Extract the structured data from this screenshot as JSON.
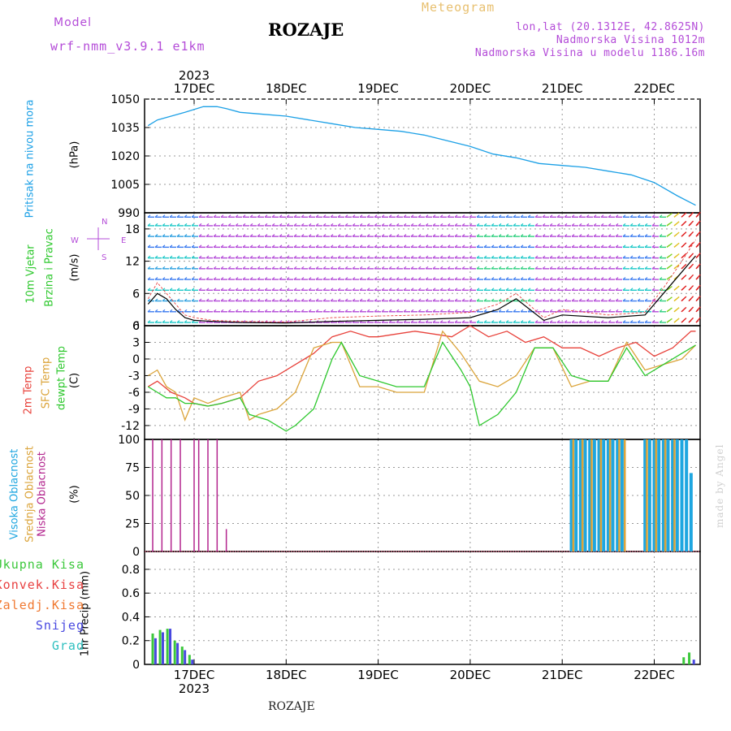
{
  "header": {
    "model_label": "Model",
    "model_name": "wrf-nmm_v3.9.1 e1km",
    "station": "ROZAJE",
    "meteogram": "Meteogram",
    "lonlat": "lon,lat (20.1312E, 42.8625N)",
    "elev": "Nadmorska Visina 1012m",
    "elev_model": "Nadmorska Visina u modelu 1186.16m"
  },
  "footer": {
    "station": "ROZAJE"
  },
  "watermark": "made by Angel",
  "colors": {
    "pressure": "#1ca0e6",
    "t2m": "#e8413a",
    "sfc": "#dba43a",
    "dewpt": "#2ec82e",
    "high_cloud": "#1ea6e0",
    "mid_cloud": "#dba43a",
    "low_cloud": "#b3258e",
    "total_precip": "#3cc83c",
    "conv_precip": "#e84040",
    "frz_precip": "#f07830",
    "snow": "#4848e0",
    "graupel": "#30c0c0",
    "wind_label": "#2ec82e",
    "arrow": "#b44cd8"
  },
  "axes": {
    "year": "2023",
    "dates": [
      "17DEC",
      "18DEC",
      "19DEC",
      "20DEC",
      "21DEC",
      "22DEC"
    ]
  },
  "wind_legend": {
    "n": "N",
    "s": "S",
    "e": "E",
    "w": "W"
  },
  "chart_data": [
    {
      "type": "line",
      "panel": "pressure",
      "ylabel_parts": [
        "Pritisak na nivou mora",
        "(hPa)"
      ],
      "yticks": [
        "1050",
        "1035",
        "1020",
        "1005",
        "990"
      ],
      "ylim": [
        990,
        1050
      ],
      "xlim": [
        -0.5,
        5.5
      ],
      "series": [
        {
          "x": [
            -0.5,
            -0.4,
            -0.25,
            -0.1,
            0.1,
            0.25,
            0.35,
            0.5,
            0.75,
            1.0,
            1.25,
            1.5,
            1.75,
            2.0,
            2.25,
            2.5,
            2.75,
            3.0,
            3.25,
            3.5,
            3.75,
            4.0,
            4.25,
            4.5,
            4.75,
            5.0,
            5.25,
            5.45
          ],
          "y": [
            1036,
            1039,
            1041,
            1043,
            1046,
            1046,
            1045,
            1043,
            1042,
            1041,
            1039,
            1037,
            1035,
            1034,
            1033,
            1031,
            1028,
            1025,
            1021,
            1019,
            1016,
            1015,
            1014,
            1012,
            1010,
            1006,
            999,
            994
          ]
        }
      ]
    },
    {
      "type": "line",
      "panel": "wind",
      "ylabel_parts": [
        "10m Vjetar",
        "Brzina i Pravac",
        "(m/s)"
      ],
      "yticks": [
        "18",
        "12",
        "6",
        "0"
      ],
      "ylim": [
        0,
        21
      ],
      "series": [
        {
          "x": [
            -0.5,
            -0.4,
            -0.3,
            -0.2,
            -0.1,
            0.0,
            0.2,
            0.5,
            1.0,
            1.5,
            2.0,
            2.5,
            3.0,
            3.3,
            3.5,
            3.8,
            4.0,
            4.5,
            4.9,
            5.1,
            5.3,
            5.45
          ],
          "y": [
            4,
            6,
            5,
            3,
            1.5,
            1,
            0.8,
            0.6,
            0.5,
            0.8,
            1,
            1.2,
            1.5,
            3,
            5,
            1,
            2,
            1.5,
            2,
            6,
            10,
            13
          ]
        },
        {
          "x": [
            -0.5,
            -0.4,
            -0.3,
            -0.2,
            -0.1,
            0.0,
            0.2,
            0.5,
            1.0,
            1.5,
            2.0,
            2.5,
            3.0,
            3.3,
            3.5,
            3.8,
            4.0,
            4.5,
            4.9,
            5.1,
            5.3,
            5.45
          ],
          "y": [
            5,
            8,
            6,
            4,
            2,
            1.5,
            1,
            0.8,
            0.7,
            1.5,
            1.8,
            2,
            2.5,
            4,
            6,
            1.5,
            3,
            2,
            2.5,
            7,
            12,
            16
          ]
        }
      ]
    },
    {
      "type": "line",
      "panel": "temperature",
      "ylabel_parts": [
        "2m Temp",
        "SFC Temp",
        "dewpt Temp",
        "(C)"
      ],
      "yticks": [
        "6",
        "3",
        "0",
        "-3",
        "-6",
        "-9",
        "-12"
      ],
      "ylim": [
        -14.5,
        6
      ],
      "series": [
        {
          "x": [
            -0.5,
            -0.4,
            -0.25,
            -0.1,
            0.0,
            0.15,
            0.3,
            0.5,
            0.7,
            0.9,
            1.1,
            1.3,
            1.5,
            1.7,
            1.9,
            2.0,
            2.2,
            2.4,
            2.6,
            2.8,
            3.0,
            3.2,
            3.4,
            3.6,
            3.8,
            4.0,
            4.2,
            4.4,
            4.6,
            4.8,
            5.0,
            5.2,
            5.4,
            5.45
          ],
          "y": [
            -5,
            -4,
            -6,
            -7,
            -8,
            -8.5,
            -8,
            -7,
            -4,
            -3,
            -1,
            1,
            4,
            5,
            4,
            4,
            4.5,
            5,
            4.5,
            4,
            6,
            4,
            5,
            3,
            4,
            2,
            2,
            0.5,
            2,
            3,
            0.5,
            2,
            5,
            5
          ]
        },
        {
          "x": [
            -0.5,
            -0.4,
            -0.3,
            -0.2,
            -0.1,
            0.0,
            0.15,
            0.3,
            0.5,
            0.6,
            0.7,
            0.9,
            1.1,
            1.3,
            1.5,
            1.6,
            1.8,
            2.0,
            2.2,
            2.4,
            2.5,
            2.7,
            2.9,
            3.1,
            3.3,
            3.5,
            3.7,
            3.9,
            4.1,
            4.3,
            4.5,
            4.7,
            4.9,
            5.1,
            5.3,
            5.45
          ],
          "y": [
            -3,
            -2,
            -5,
            -6,
            -11,
            -7,
            -8,
            -7,
            -6,
            -11,
            -10,
            -9,
            -6,
            2,
            3,
            3,
            -5,
            -5,
            -6,
            -6,
            -6,
            5,
            1,
            -4,
            -5,
            -3,
            2,
            2,
            -5,
            -4,
            -4,
            3,
            -2,
            -1,
            0,
            2.5
          ]
        },
        {
          "x": [
            -0.5,
            -0.4,
            -0.3,
            -0.2,
            -0.1,
            0.0,
            0.15,
            0.3,
            0.5,
            0.6,
            0.8,
            1.0,
            1.1,
            1.3,
            1.5,
            1.6,
            1.8,
            2.0,
            2.2,
            2.4,
            2.5,
            2.7,
            2.9,
            3.0,
            3.1,
            3.3,
            3.5,
            3.7,
            3.9,
            4.1,
            4.3,
            4.5,
            4.7,
            4.9,
            5.1,
            5.3,
            5.45
          ],
          "y": [
            -5,
            -6,
            -7,
            -7,
            -8,
            -8,
            -8.5,
            -8,
            -7,
            -10,
            -11,
            -13,
            -12,
            -9,
            0,
            3,
            -3,
            -4,
            -5,
            -5,
            -5,
            3,
            -2,
            -5,
            -12,
            -10,
            -6,
            2,
            2,
            -3,
            -4,
            -4,
            2,
            -3,
            -1,
            1,
            2.5
          ]
        }
      ]
    },
    {
      "type": "bar",
      "panel": "clouds",
      "ylabel_parts": [
        "Visoka Oblacnost",
        "Srednja Oblacnost",
        "Niska Oblacnost",
        "(%)"
      ],
      "yticks": [
        "100",
        "75",
        "50",
        "25",
        "0"
      ],
      "ylim": [
        0,
        100
      ],
      "series": [
        {
          "name": "Niska Oblacnost",
          "x": [
            -0.45,
            -0.35,
            -0.25,
            -0.15,
            0.0,
            0.05,
            0.15,
            0.25,
            0.35
          ],
          "values": [
            100,
            100,
            100,
            100,
            100,
            100,
            100,
            100,
            20
          ]
        },
        {
          "name": "Visoka Oblacnost",
          "x": [
            4.1,
            4.15,
            4.2,
            4.25,
            4.3,
            4.35,
            4.4,
            4.45,
            4.5,
            4.55,
            4.6,
            4.65,
            4.9,
            4.95,
            5.0,
            5.05,
            5.1,
            5.15,
            5.2,
            5.25,
            5.3,
            5.35,
            5.4
          ],
          "values": [
            100,
            100,
            100,
            100,
            100,
            100,
            100,
            100,
            100,
            100,
            100,
            100,
            100,
            100,
            100,
            100,
            100,
            100,
            100,
            100,
            100,
            100,
            70
          ]
        },
        {
          "name": "Srednja Oblacnost",
          "x": [
            4.12,
            4.22,
            4.32,
            4.42,
            4.52,
            4.62,
            4.68,
            4.92,
            5.02,
            5.12,
            5.22
          ],
          "values": [
            100,
            100,
            100,
            100,
            100,
            100,
            100,
            100,
            100,
            100,
            100
          ]
        }
      ]
    },
    {
      "type": "bar",
      "panel": "precip",
      "ylabel_parts": [
        "1hr Precip (mm)"
      ],
      "yticks": [
        "0.8",
        "0.6",
        "0.4",
        "0.2",
        "0"
      ],
      "ylim": [
        0,
        0.95
      ],
      "legend": [
        "Ukupna Kisa",
        "Konvek.Kisa",
        "Zaledj.Kisa",
        "Snijeg",
        "Grad"
      ],
      "series": [
        {
          "name": "Ukupna Kisa",
          "x": [
            -0.45,
            -0.37,
            -0.29,
            -0.21,
            -0.13,
            -0.05,
            5.32,
            5.38
          ],
          "values": [
            0.26,
            0.29,
            0.3,
            0.2,
            0.15,
            0.08,
            0.06,
            0.1
          ]
        },
        {
          "name": "Snijeg",
          "x": [
            -0.42,
            -0.34,
            -0.26,
            -0.18,
            -0.1,
            -0.02,
            5.43
          ],
          "values": [
            0.22,
            0.27,
            0.3,
            0.18,
            0.12,
            0.04,
            0.04
          ]
        }
      ]
    }
  ]
}
